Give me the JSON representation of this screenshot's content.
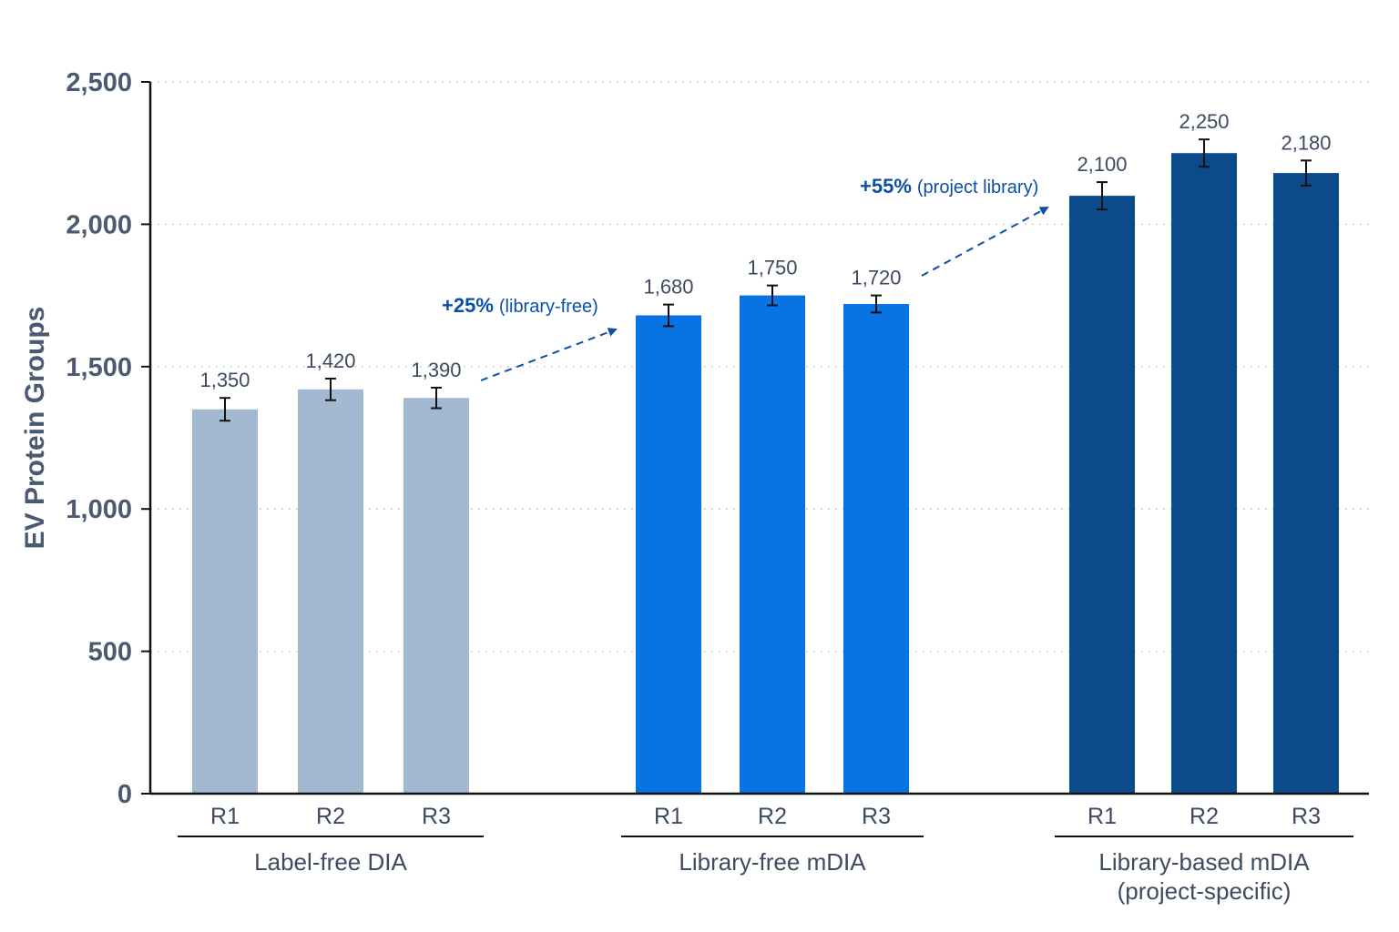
{
  "chart_data": {
    "type": "bar",
    "ylabel": "EV Protein Groups",
    "ylim": [
      0,
      2500
    ],
    "yticks": [
      0,
      500,
      1000,
      1500,
      2000,
      2500
    ],
    "ytick_labels": [
      "0",
      "500",
      "1,000",
      "1,500",
      "2,000",
      "2,500"
    ],
    "grid": "horizontal dotted",
    "groups": [
      {
        "name": "Label-free DIA",
        "name_lines": [
          "Label-free DIA"
        ],
        "color": "#a3b9d1",
        "categories": [
          "R1",
          "R2",
          "R3"
        ],
        "values": [
          1350,
          1420,
          1390
        ],
        "value_labels": [
          "1,350",
          "1,420",
          "1,390"
        ],
        "errors": [
          40,
          38,
          36
        ]
      },
      {
        "name": "Library-free mDIA",
        "name_lines": [
          "Library-free mDIA"
        ],
        "color": "#0873e3",
        "categories": [
          "R1",
          "R2",
          "R3"
        ],
        "values": [
          1680,
          1750,
          1720
        ],
        "value_labels": [
          "1,680",
          "1,750",
          "1,720"
        ],
        "errors": [
          38,
          35,
          30
        ]
      },
      {
        "name": "Library-based mDIA (project-specific)",
        "name_lines": [
          "Library-based mDIA",
          "(project-specific)"
        ],
        "color": "#0d4a8c",
        "categories": [
          "R1",
          "R2",
          "R3"
        ],
        "values": [
          2100,
          2250,
          2180
        ],
        "value_labels": [
          "2,100",
          "2,250",
          "2,180"
        ],
        "errors": [
          48,
          48,
          44
        ]
      }
    ],
    "annotations": [
      {
        "main": "+25%",
        "sub": "(library-free)",
        "from_group": 0,
        "to_group": 1
      },
      {
        "main": "+55%",
        "sub": "(project library)",
        "from_group": 1,
        "to_group": 2
      }
    ]
  }
}
